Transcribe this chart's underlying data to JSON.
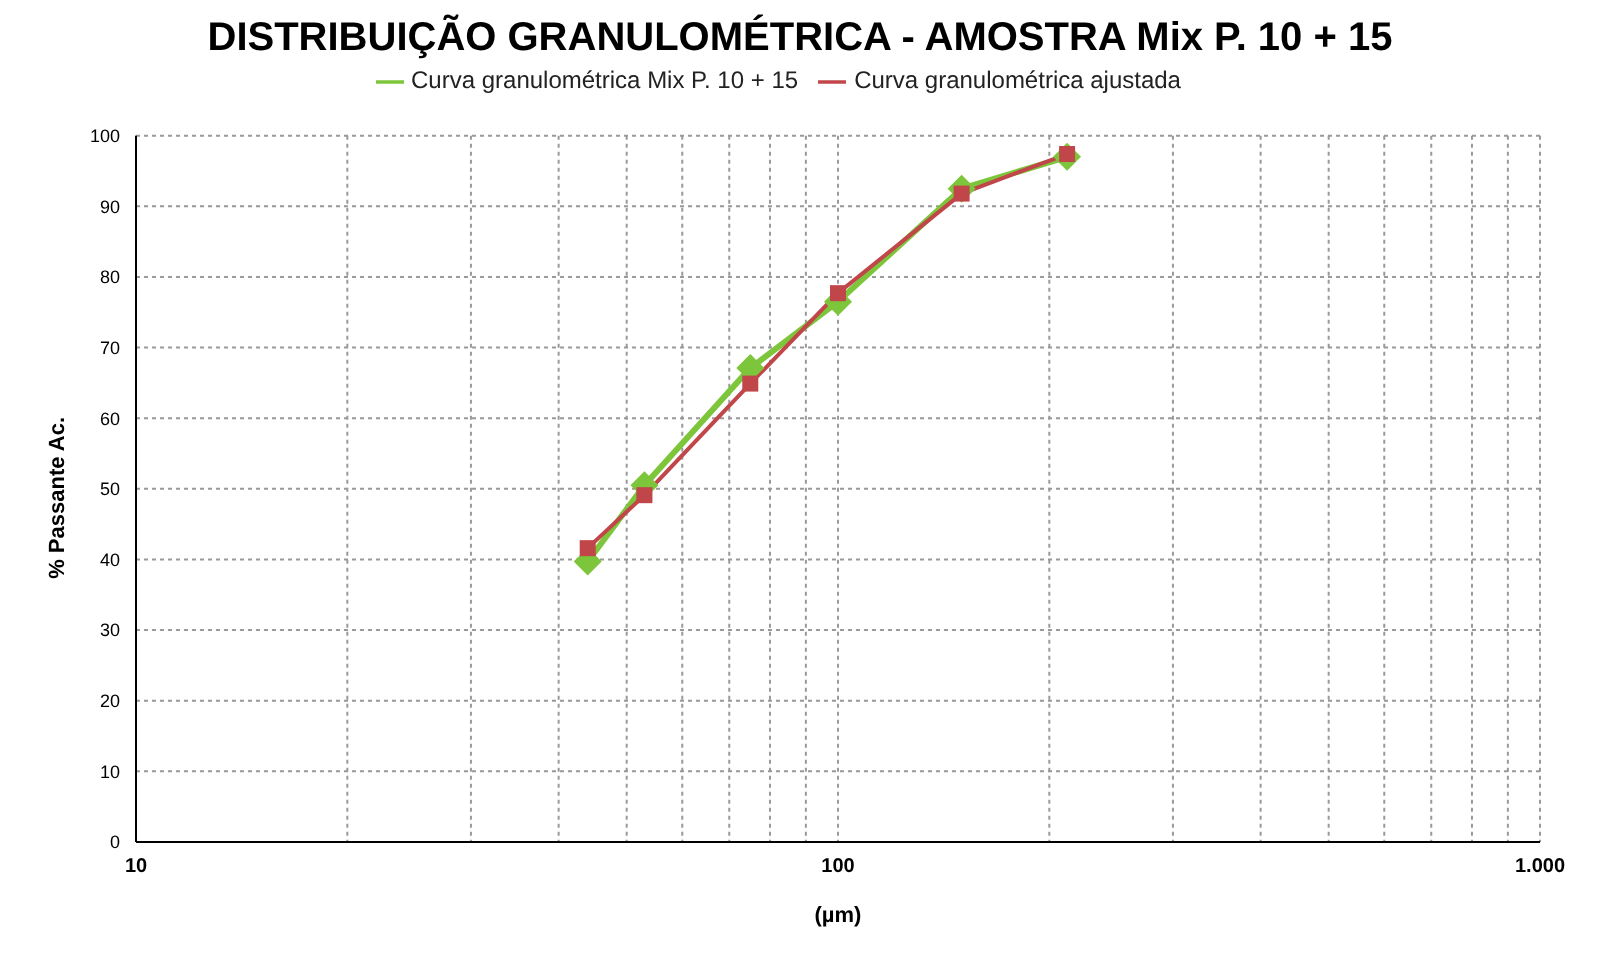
{
  "chart_data": {
    "type": "line",
    "title": "DISTRIBUIÇÃO GRANULOMÉTRICA - AMOSTRA Mix P. 10 + 15",
    "xlabel": "(µm)",
    "ylabel": "% Passante Ac.",
    "x": [
      44,
      53,
      75,
      100,
      150,
      212
    ],
    "series": [
      {
        "name": "Curva granulométrica Mix P. 10 + 15",
        "color": "#7dc63b",
        "marker": "diamond",
        "values": [
          39.7,
          50.5,
          67.1,
          76.5,
          92.5,
          97
        ]
      },
      {
        "name": "Curva granulométrica ajustada",
        "color": "#c0464a",
        "marker": "square",
        "values": [
          41.6,
          49.1,
          64.9,
          77.7,
          91.8,
          97.4
        ]
      }
    ],
    "log": "x",
    "xlim": [
      10,
      1000
    ],
    "xticks": [
      10,
      {
        "value": 20,
        "label": null
      },
      {
        "value": 30,
        "label": null
      },
      {
        "value": 40,
        "label": null
      },
      {
        "value": 50,
        "label": null
      },
      {
        "value": 60,
        "label": null
      },
      {
        "value": 70,
        "label": null
      },
      {
        "value": 80,
        "label": null
      },
      {
        "value": 90,
        "label": null
      },
      100,
      {
        "value": 200,
        "label": null
      },
      {
        "value": 300,
        "label": null
      },
      {
        "value": 400,
        "label": null
      },
      {
        "value": 500,
        "label": null
      },
      {
        "value": 600,
        "label": null
      },
      {
        "value": 700,
        "label": null
      },
      {
        "value": 800,
        "label": null
      },
      {
        "value": 900,
        "label": null
      },
      {
        "value": 1000,
        "label": "1.000"
      }
    ],
    "ylim": [
      0,
      100
    ],
    "yticks": [
      0,
      10,
      20,
      30,
      40,
      50,
      60,
      70,
      80,
      90,
      100
    ],
    "grid": true,
    "legend": "top",
    "line_style": "solid"
  }
}
